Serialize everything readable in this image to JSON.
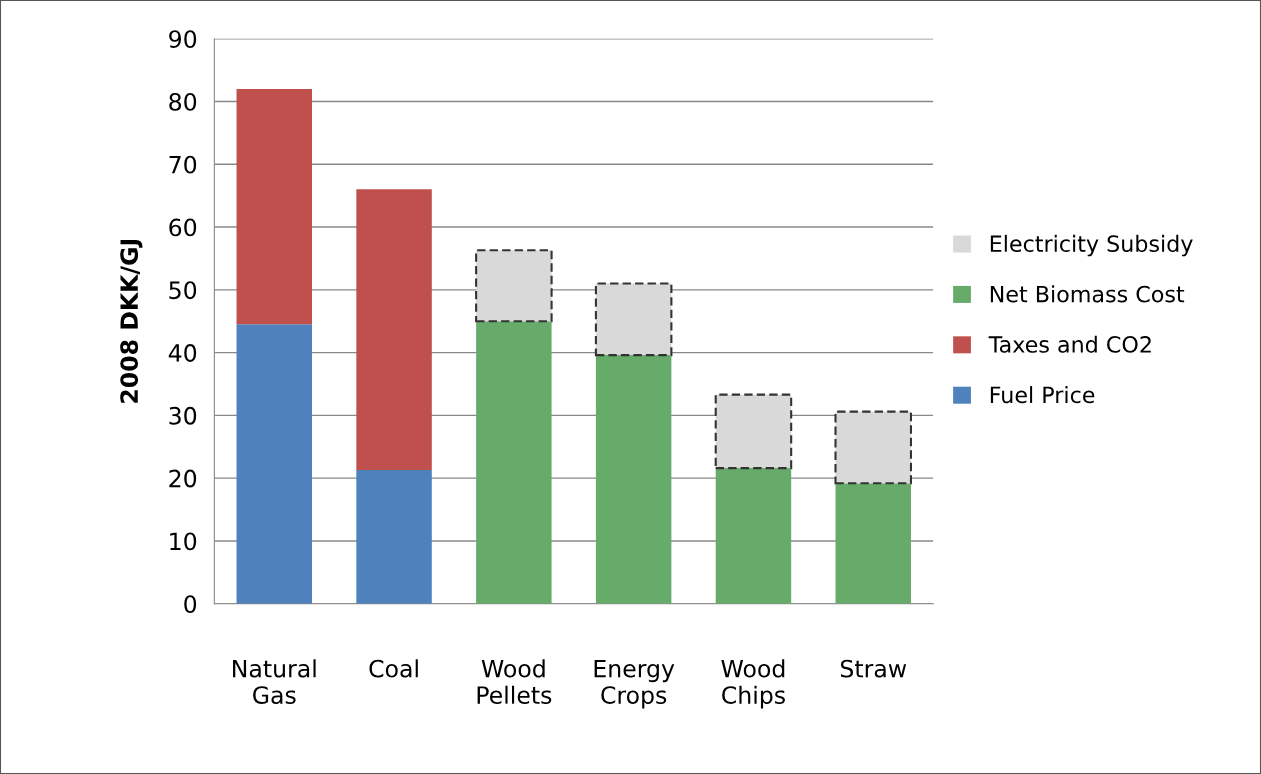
{
  "chart_data": {
    "type": "bar",
    "stacked": true,
    "ylabel": "2008 DKK/GJ",
    "categories": [
      "Natural\nGas",
      "Coal",
      "Wood\nPellets",
      "Energy\nCrops",
      "Wood\nChips",
      "Straw"
    ],
    "series": [
      {
        "name": "Fuel Price",
        "color": "#4f81bd",
        "values": [
          44.5,
          21.3,
          null,
          null,
          null,
          null
        ]
      },
      {
        "name": "Taxes and CO2",
        "color": "#c0504d",
        "values": [
          37.5,
          44.7,
          null,
          null,
          null,
          null
        ]
      },
      {
        "name": "Net Biomass Cost",
        "color": "#66ab6a",
        "values": [
          null,
          null,
          45,
          39.6,
          21.6,
          19.2
        ]
      },
      {
        "name": "Electricity Subsidy",
        "color": "#d9d9d9",
        "line_style": "dashed",
        "values": [
          null,
          null,
          11.3,
          11.4,
          11.7,
          11.4
        ]
      }
    ],
    "ylim": [
      0,
      90
    ],
    "yticks": [
      0,
      10,
      20,
      30,
      40,
      50,
      60,
      70,
      80,
      90
    ],
    "grid": "y",
    "legend": "right"
  }
}
